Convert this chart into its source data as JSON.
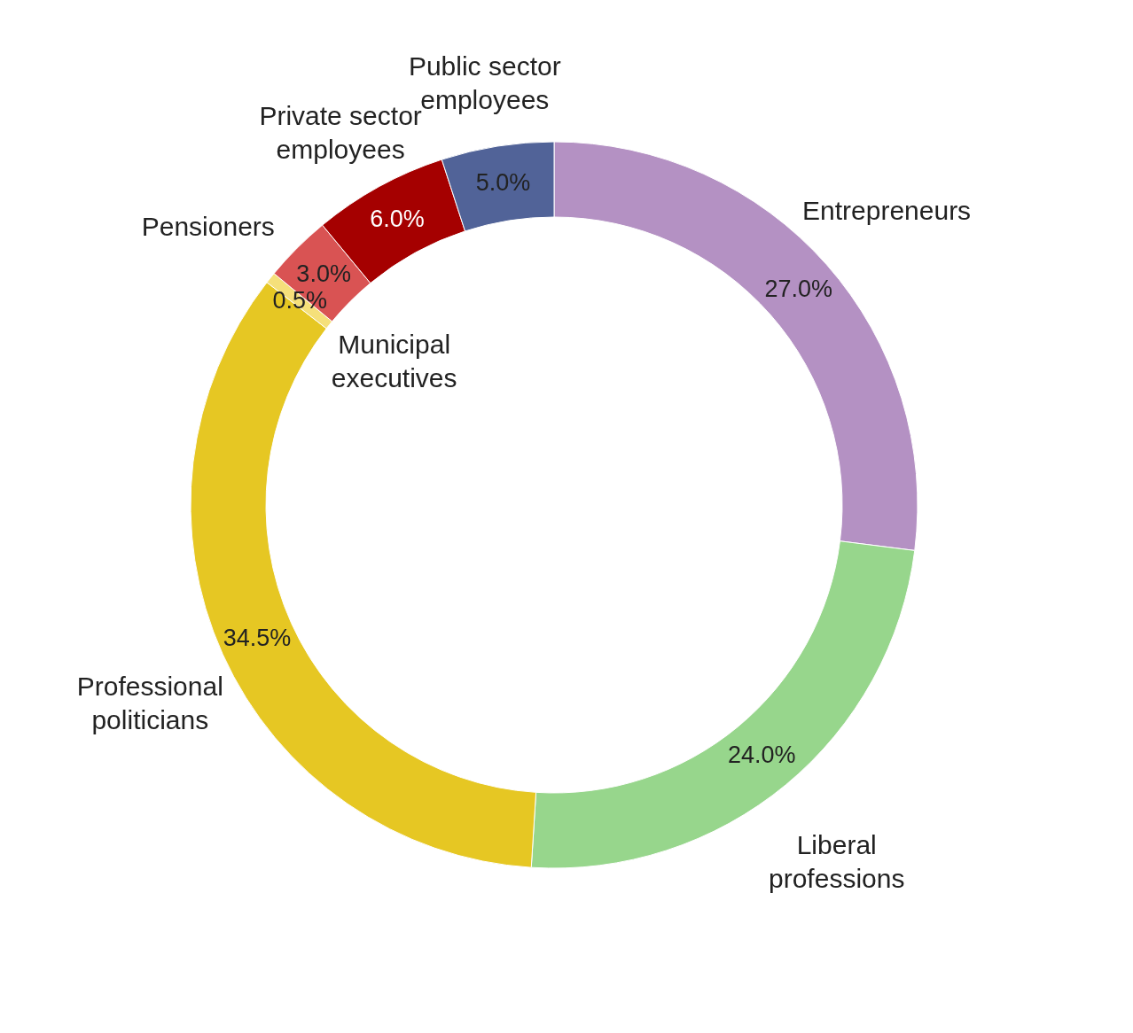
{
  "chart_data": {
    "type": "donut",
    "categories": [
      "Entrepreneurs",
      "Liberal professions",
      "Professional politicians",
      "Pensioners",
      "Municipal executives",
      "Private sector employees",
      "Public sector employees"
    ],
    "values": [
      27.0,
      24.0,
      34.5,
      0.5,
      3.0,
      6.0,
      5.0
    ],
    "value_labels": [
      "27.0%",
      "24.0%",
      "34.5%",
      "0.5%",
      "3.0%",
      "6.0%",
      "5.0%"
    ],
    "colors": [
      "#b491c3",
      "#97d68c",
      "#e6c723",
      "#f5e07a",
      "#d95353",
      "#a50000",
      "#516398"
    ],
    "legend": false
  }
}
